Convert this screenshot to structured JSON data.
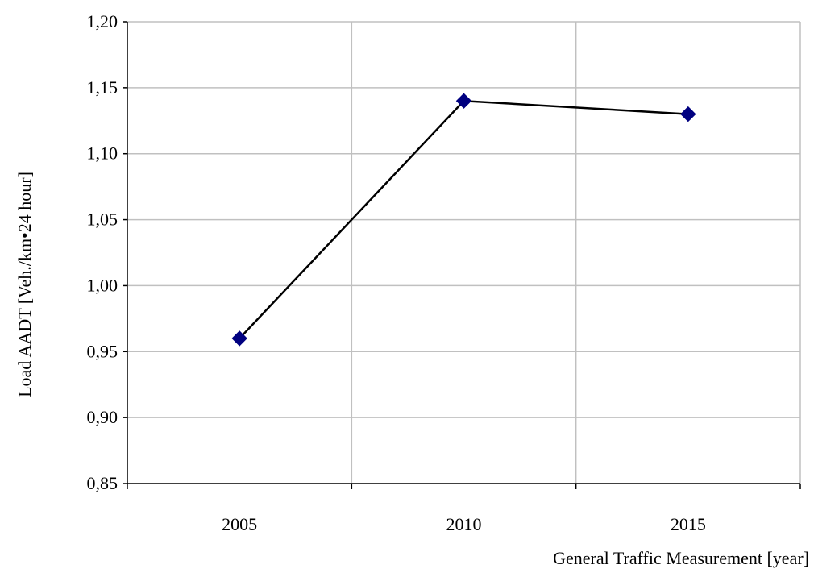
{
  "chart_data": {
    "type": "line",
    "categories": [
      "2005",
      "2010",
      "2015"
    ],
    "values": [
      0.96,
      1.14,
      1.13
    ],
    "xlabel": "General Traffic Measurement [year]",
    "ylabel": "Load AADT [Veh./km•24 hour]",
    "ylim": [
      0.85,
      1.2
    ],
    "yticks": [
      0.85,
      0.9,
      0.95,
      1.0,
      1.05,
      1.1,
      1.15,
      1.2
    ],
    "ytick_labels": [
      "0,85",
      "0,90",
      "0,95",
      "1,00",
      "1,05",
      "1,10",
      "1,15",
      "1,20"
    ],
    "grid": true,
    "marker": "diamond",
    "line_color": "#000000",
    "marker_color": "#000080"
  }
}
